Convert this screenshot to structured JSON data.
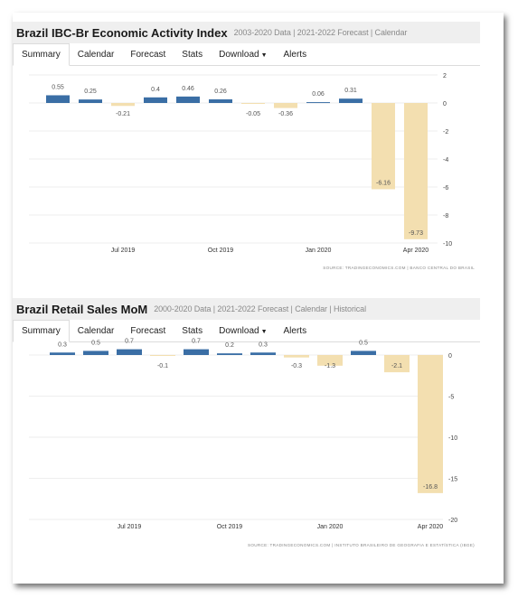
{
  "charts": [
    {
      "title": "Brazil IBC-Br Economic Activity Index",
      "subtitle": "2003-2020 Data | 2021-2022 Forecast | Calendar",
      "tabs": [
        "Summary",
        "Calendar",
        "Forecast",
        "Stats",
        "Download",
        "Alerts"
      ],
      "active_tab": "Summary",
      "source": "SOURCE: TRADINGECONOMICS.COM | BANCO CENTRAL DO BRASIL"
    },
    {
      "title": "Brazil Retail Sales MoM",
      "subtitle": "2000-2020 Data | 2021-2022 Forecast | Calendar | Historical",
      "tabs": [
        "Summary",
        "Calendar",
        "Forecast",
        "Stats",
        "Download",
        "Alerts"
      ],
      "active_tab": "Summary",
      "source": "SOURCE: TRADINGECONOMICS.COM | INSTITUTO BRASILEIRO DE GEOGRAFIA E ESTATÍSTICA (IBGE)"
    }
  ],
  "chart_data": [
    {
      "type": "bar",
      "values": [
        0.55,
        0.25,
        -0.21,
        0.4,
        0.46,
        0.26,
        -0.05,
        -0.36,
        0.06,
        0.31,
        -6.16,
        -9.73
      ],
      "value_labels": [
        "0.55",
        "0.25",
        "-0.21",
        "0.4",
        "0.46",
        "0.26",
        "-0.05",
        "-0.36",
        "0.06",
        "0.31",
        "-6.16",
        "-9.73"
      ],
      "x_tick_labels": [
        "Jul 2019",
        "Oct 2019",
        "Jan 2020",
        "Apr 2020"
      ],
      "x_tick_index": [
        2,
        5,
        8,
        11
      ],
      "y_tick_labels": [
        "2",
        "0",
        "-2",
        "-4",
        "-6",
        "-8",
        "-10"
      ],
      "y_ticks": [
        2,
        0,
        -2,
        -4,
        -6,
        -8,
        -10
      ],
      "ylim": [
        -10,
        2
      ],
      "grid": true,
      "colors": {
        "positive": "#3a6ea5",
        "negative": "#f3dfb0",
        "grid": "#e9e9e9",
        "label": "#555555"
      }
    },
    {
      "type": "bar",
      "values": [
        0.3,
        0.5,
        0.7,
        -0.1,
        0.7,
        0.2,
        0.3,
        -0.3,
        -1.3,
        0.5,
        -2.1,
        -16.8
      ],
      "value_labels": [
        "0.3",
        "0.5",
        "0.7",
        "-0.1",
        "0.7",
        "0.2",
        "0.3",
        "-0.3",
        "-1.3",
        "0.5",
        "-2.1",
        "-16.8"
      ],
      "x_tick_labels": [
        "Jul 2019",
        "Oct 2019",
        "Jan 2020",
        "Apr 2020"
      ],
      "x_tick_index": [
        2,
        5,
        8,
        11
      ],
      "y_tick_labels": [
        "0",
        "-5",
        "-10",
        "-15",
        "-20"
      ],
      "y_ticks": [
        0,
        -5,
        -10,
        -15,
        -20
      ],
      "ylim": [
        -20,
        0
      ],
      "grid": true,
      "colors": {
        "positive": "#3a6ea5",
        "negative": "#f3dfb0",
        "grid": "#e9e9e9",
        "label": "#555555"
      }
    }
  ]
}
